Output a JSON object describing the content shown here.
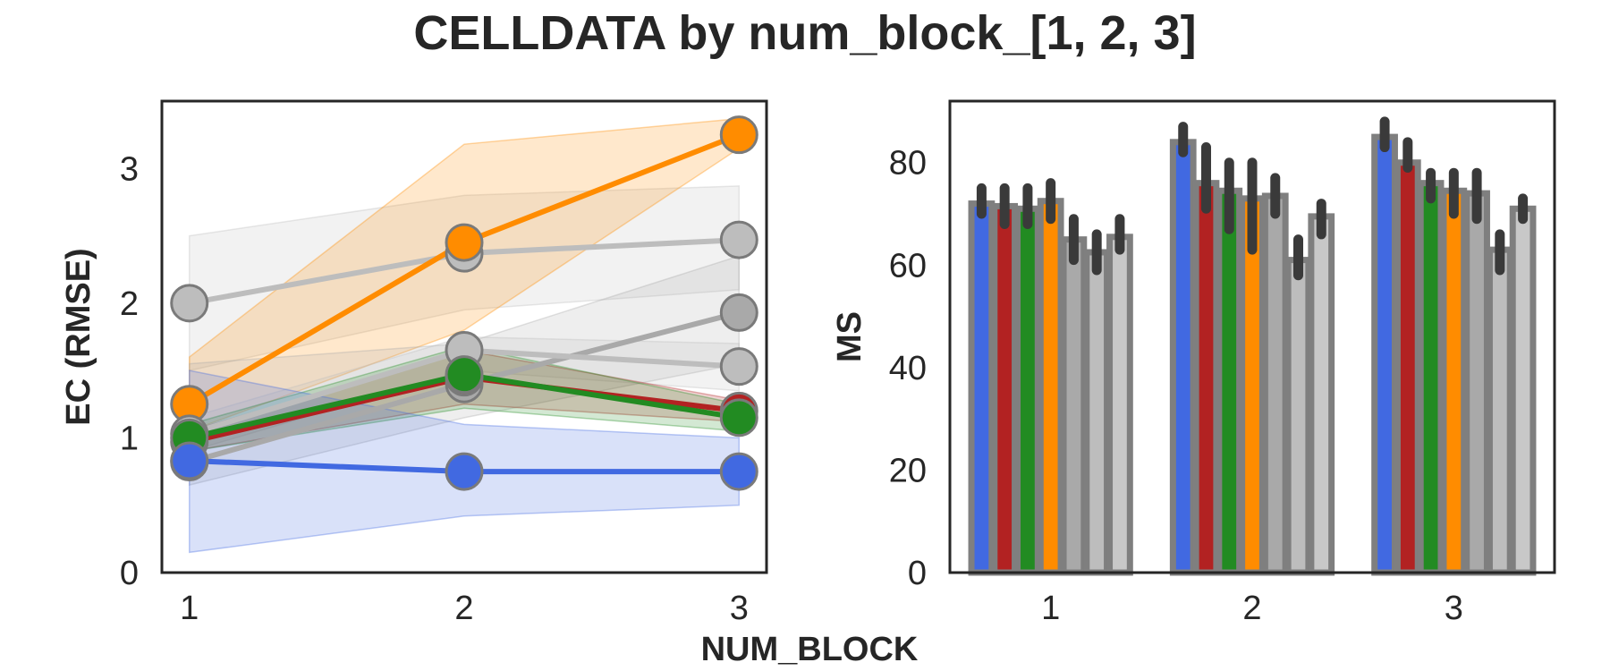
{
  "figure": {
    "title": "CELLDATA  by num_block_[1, 2, 3]",
    "shared_xlabel": "NUM_BLOCK"
  },
  "chart_data": [
    {
      "type": "line",
      "ylabel": "EC (RMSE)",
      "x": [
        1,
        2,
        3
      ],
      "ylim": [
        0,
        3.5
      ],
      "yticks": [
        0,
        1,
        2,
        3
      ],
      "grid": false,
      "series": [
        {
          "color": "#bdbdbd",
          "values": [
            2.0,
            2.37,
            2.47
          ],
          "lower": [
            1.5,
            1.95,
            2.1
          ],
          "upper": [
            2.5,
            2.8,
            2.87
          ]
        },
        {
          "color": "#ff8c00",
          "values": [
            1.25,
            2.45,
            3.25
          ],
          "lower": [
            1.05,
            1.8,
            3.15
          ],
          "upper": [
            1.6,
            3.18,
            3.37
          ]
        },
        {
          "color": "#a9a9a9",
          "values": [
            0.82,
            1.4,
            1.93
          ],
          "lower": [
            0.65,
            1.15,
            1.55
          ],
          "upper": [
            1.55,
            1.7,
            2.35
          ]
        },
        {
          "color": "#bdbdbd",
          "values": [
            1.03,
            1.65,
            1.53
          ],
          "lower": [
            0.9,
            1.5,
            1.35
          ],
          "upper": [
            1.15,
            1.75,
            1.7
          ]
        },
        {
          "color": "#b22222",
          "values": [
            0.97,
            1.45,
            1.2
          ],
          "lower": [
            0.9,
            1.25,
            1.12
          ],
          "upper": [
            1.05,
            1.65,
            1.28
          ]
        },
        {
          "color": "#228b22",
          "values": [
            1.0,
            1.47,
            1.15
          ],
          "lower": [
            0.9,
            1.22,
            1.05
          ],
          "upper": [
            1.1,
            1.68,
            1.25
          ]
        },
        {
          "color": "#4169e1",
          "values": [
            0.83,
            0.75,
            0.75
          ],
          "lower": [
            0.15,
            0.42,
            0.5
          ],
          "upper": [
            1.5,
            1.1,
            1.0
          ]
        }
      ]
    },
    {
      "type": "bar",
      "ylabel": "MS",
      "categories": [
        "1",
        "2",
        "3"
      ],
      "ylim": [
        0,
        92
      ],
      "yticks": [
        0,
        20,
        40,
        60,
        80
      ],
      "grid": false,
      "series": [
        {
          "color": "#4169e1",
          "values": [
            72,
            84,
            85
          ],
          "err": [
            [
              70,
              75
            ],
            [
              82,
              87
            ],
            [
              83,
              88
            ]
          ]
        },
        {
          "color": "#b22222",
          "values": [
            71.5,
            76,
            80
          ],
          "err": [
            [
              68,
              75
            ],
            [
              71,
              83
            ],
            [
              79,
              84
            ]
          ]
        },
        {
          "color": "#228b22",
          "values": [
            71,
            74.5,
            76
          ],
          "err": [
            [
              68,
              75
            ],
            [
              67,
              80
            ],
            [
              73,
              78
            ]
          ]
        },
        {
          "color": "#ff8c00",
          "values": [
            72.5,
            73,
            74.5
          ],
          "err": [
            [
              69,
              76
            ],
            [
              63,
              80
            ],
            [
              70,
              78
            ]
          ]
        },
        {
          "color": "#a9a9a9",
          "values": [
            65,
            73.5,
            74
          ],
          "err": [
            [
              61,
              69
            ],
            [
              70,
              77
            ],
            [
              69,
              78
            ]
          ]
        },
        {
          "color": "#bdbdbd",
          "values": [
            62.5,
            61,
            63
          ],
          "err": [
            [
              59,
              66
            ],
            [
              58,
              65
            ],
            [
              59,
              66
            ]
          ]
        },
        {
          "color": "#c8c8c8",
          "values": [
            65.5,
            69.5,
            71
          ],
          "err": [
            [
              63,
              69
            ],
            [
              66,
              72
            ],
            [
              69,
              73
            ]
          ]
        }
      ]
    }
  ]
}
